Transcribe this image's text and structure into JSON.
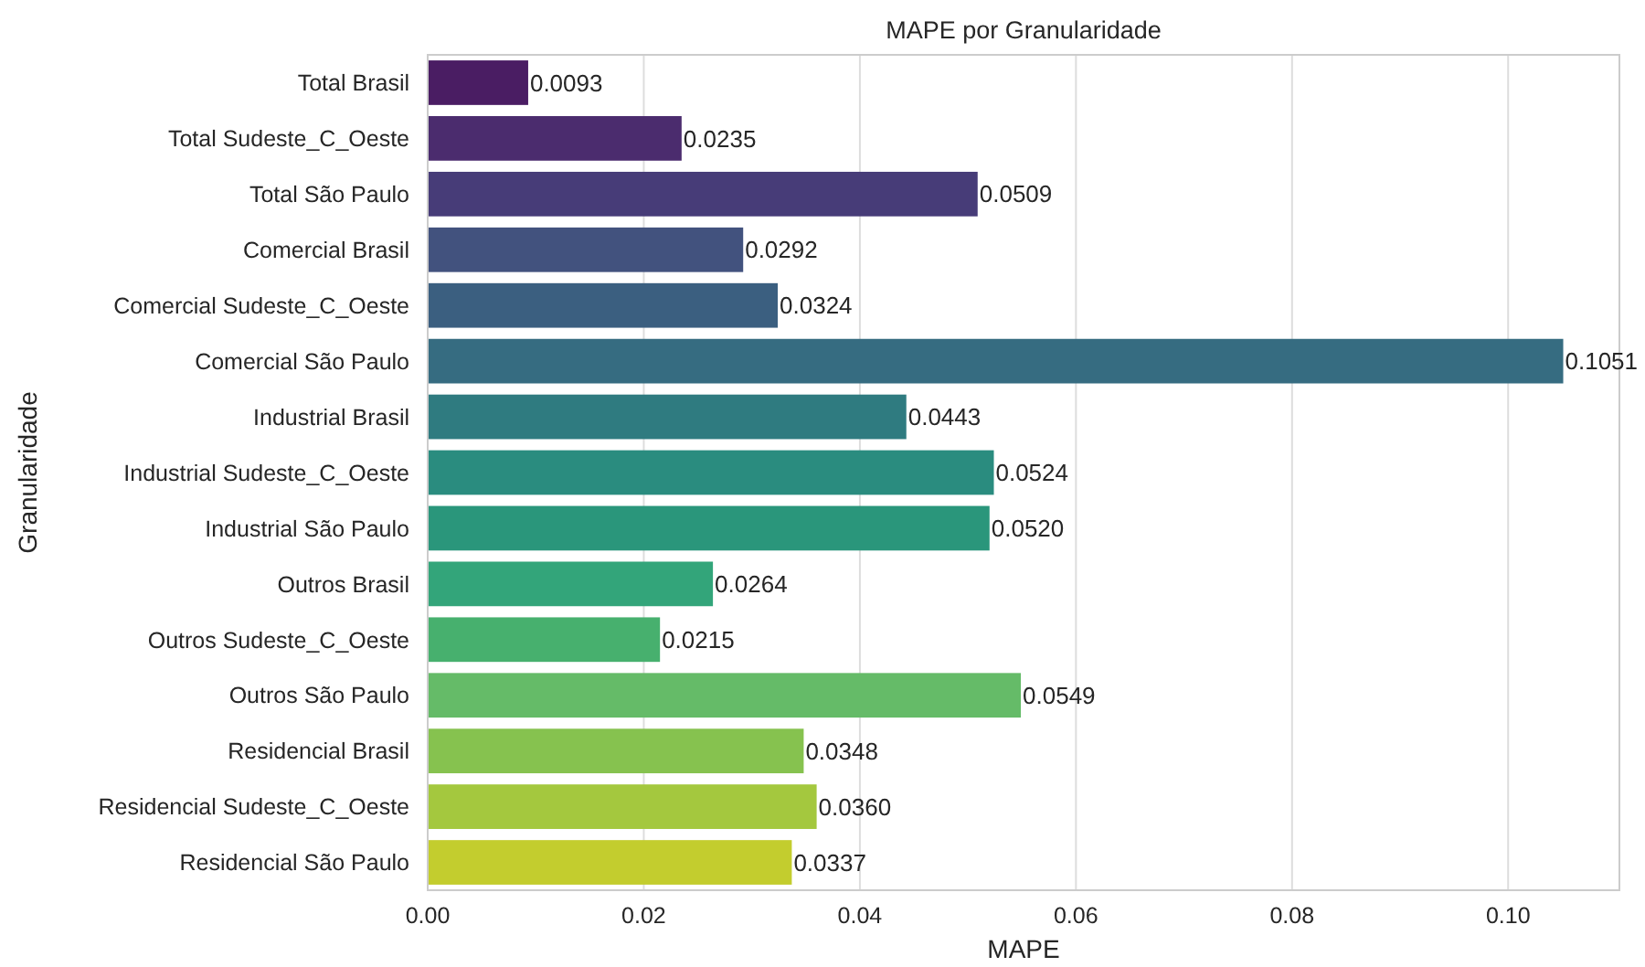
{
  "chart_data": {
    "type": "bar",
    "orientation": "horizontal",
    "title": "MAPE por Granularidade",
    "xlabel": "MAPE",
    "ylabel": "Granularidade",
    "categories": [
      "Total Brasil",
      "Total Sudeste_C_Oeste",
      "Total São Paulo",
      "Comercial Brasil",
      "Comercial Sudeste_C_Oeste",
      "Comercial São Paulo",
      "Industrial Brasil",
      "Industrial Sudeste_C_Oeste",
      "Industrial São Paulo",
      "Outros Brasil",
      "Outros Sudeste_C_Oeste",
      "Outros São Paulo",
      "Residencial Brasil",
      "Residencial Sudeste_C_Oeste",
      "Residencial São Paulo"
    ],
    "values": [
      0.0093,
      0.0235,
      0.0509,
      0.0292,
      0.0324,
      0.1051,
      0.0443,
      0.0524,
      0.052,
      0.0264,
      0.0215,
      0.0549,
      0.0348,
      0.036,
      0.0337
    ],
    "value_labels": [
      "0.0093",
      "0.0235",
      "0.0509",
      "0.0292",
      "0.0324",
      "0.1051",
      "0.0443",
      "0.0524",
      "0.0520",
      "0.0264",
      "0.0215",
      "0.0549",
      "0.0348",
      "0.0360",
      "0.0337"
    ],
    "colors": [
      "#4a1d63",
      "#4b2c6e",
      "#473c78",
      "#42527e",
      "#3b5f80",
      "#366c81",
      "#2f7b80",
      "#2a8c7f",
      "#2a967b",
      "#33a57a",
      "#47b06e",
      "#65bb68",
      "#86c24f",
      "#a4c83e",
      "#c3cd2e"
    ],
    "xlim": [
      0,
      0.1103
    ],
    "xticks": [
      {
        "value": 0,
        "label": "0.00"
      },
      {
        "value": 0.02,
        "label": "0.02"
      },
      {
        "value": 0.04,
        "label": "0.04"
      },
      {
        "value": 0.06,
        "label": "0.06"
      },
      {
        "value": 0.08,
        "label": "0.08"
      },
      {
        "value": 0.1,
        "label": "0.10"
      }
    ],
    "grid": "x"
  }
}
